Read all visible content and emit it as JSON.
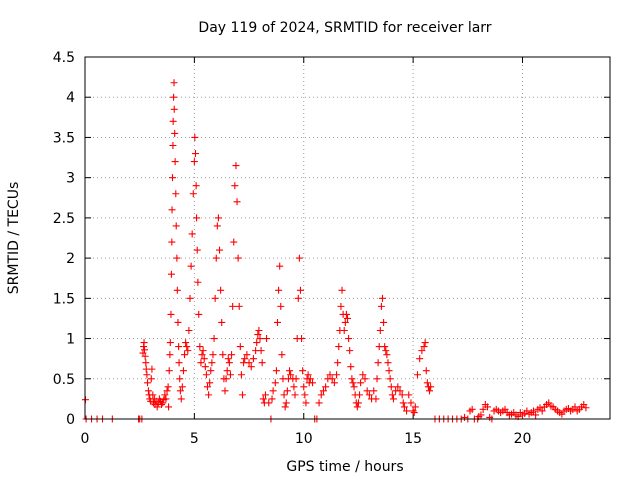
{
  "chart_data": {
    "type": "scatter",
    "title": "Day 119 of 2024, SRMTID for receiver larr",
    "xlabel": "GPS time / hours",
    "ylabel": "SRMTID / TECUs",
    "xlim": [
      0,
      24
    ],
    "ylim": [
      0,
      4.5
    ],
    "xticks": [
      0,
      5,
      10,
      15,
      20
    ],
    "xtick_labels": [
      "0",
      "5",
      "10",
      "15",
      "20"
    ],
    "yticks": [
      0,
      0.5,
      1,
      1.5,
      2,
      2.5,
      3,
      3.5,
      4,
      4.5
    ],
    "ytick_labels": [
      "0",
      "0.5",
      "1",
      "1.5",
      "2",
      "2.5",
      "3",
      "3.5",
      "4",
      "4.5"
    ],
    "grid": true,
    "marker": "plus",
    "color": "#ff0000",
    "series": [
      {
        "name": "SRMTID",
        "points": [
          [
            0.02,
            0.24
          ],
          [
            0.05,
            0.0
          ],
          [
            0.3,
            0.0
          ],
          [
            0.55,
            0.0
          ],
          [
            0.8,
            0.0
          ],
          [
            1.25,
            0.0
          ],
          [
            2.45,
            0.0
          ],
          [
            2.5,
            0.0
          ],
          [
            2.6,
            0.0
          ],
          [
            2.65,
            0.82
          ],
          [
            2.68,
            0.9
          ],
          [
            2.7,
            0.95
          ],
          [
            2.72,
            0.86
          ],
          [
            2.75,
            0.78
          ],
          [
            2.78,
            0.7
          ],
          [
            2.8,
            0.62
          ],
          [
            2.83,
            0.55
          ],
          [
            2.86,
            0.45
          ],
          [
            2.9,
            0.35
          ],
          [
            2.93,
            0.3
          ],
          [
            2.96,
            0.25
          ],
          [
            3.0,
            0.22
          ],
          [
            3.03,
            0.5
          ],
          [
            3.06,
            0.62
          ],
          [
            3.1,
            0.3
          ],
          [
            3.13,
            0.2
          ],
          [
            3.17,
            0.25
          ],
          [
            3.2,
            0.18
          ],
          [
            3.25,
            0.22
          ],
          [
            3.3,
            0.15
          ],
          [
            3.35,
            0.2
          ],
          [
            3.4,
            0.25
          ],
          [
            3.45,
            0.22
          ],
          [
            3.5,
            0.18
          ],
          [
            3.55,
            0.2
          ],
          [
            3.6,
            0.24
          ],
          [
            3.65,
            0.3
          ],
          [
            3.7,
            0.25
          ],
          [
            3.75,
            0.35
          ],
          [
            3.8,
            0.4
          ],
          [
            3.82,
            0.15
          ],
          [
            3.85,
            0.6
          ],
          [
            3.88,
            0.8
          ],
          [
            3.9,
            0.95
          ],
          [
            3.93,
            1.3
          ],
          [
            3.95,
            1.8
          ],
          [
            3.97,
            2.2
          ],
          [
            3.98,
            2.6
          ],
          [
            4.0,
            3.0
          ],
          [
            4.02,
            3.4
          ],
          [
            4.03,
            3.7
          ],
          [
            4.05,
            4.0
          ],
          [
            4.07,
            4.18
          ],
          [
            4.08,
            3.85
          ],
          [
            4.1,
            3.55
          ],
          [
            4.12,
            3.2
          ],
          [
            4.15,
            2.8
          ],
          [
            4.17,
            2.4
          ],
          [
            4.2,
            2.0
          ],
          [
            4.22,
            1.6
          ],
          [
            4.25,
            1.2
          ],
          [
            4.28,
            0.9
          ],
          [
            4.3,
            0.7
          ],
          [
            4.33,
            0.5
          ],
          [
            4.36,
            0.35
          ],
          [
            4.4,
            0.25
          ],
          [
            4.45,
            0.4
          ],
          [
            4.5,
            0.6
          ],
          [
            4.55,
            0.8
          ],
          [
            4.6,
            0.95
          ],
          [
            4.65,
            0.9
          ],
          [
            4.7,
            0.85
          ],
          [
            4.75,
            1.1
          ],
          [
            4.8,
            1.5
          ],
          [
            4.85,
            1.9
          ],
          [
            4.9,
            2.3
          ],
          [
            4.95,
            2.8
          ],
          [
            5.0,
            3.2
          ],
          [
            5.02,
            3.5
          ],
          [
            5.05,
            3.3
          ],
          [
            5.08,
            2.9
          ],
          [
            5.1,
            2.5
          ],
          [
            5.13,
            2.1
          ],
          [
            5.16,
            1.7
          ],
          [
            5.2,
            1.3
          ],
          [
            5.25,
            0.9
          ],
          [
            5.3,
            0.7
          ],
          [
            5.35,
            0.8
          ],
          [
            5.4,
            0.85
          ],
          [
            5.45,
            0.75
          ],
          [
            5.5,
            0.65
          ],
          [
            5.55,
            0.55
          ],
          [
            5.6,
            0.4
          ],
          [
            5.65,
            0.3
          ],
          [
            5.7,
            0.45
          ],
          [
            5.75,
            0.6
          ],
          [
            5.8,
            0.7
          ],
          [
            5.85,
            0.8
          ],
          [
            5.9,
            1.0
          ],
          [
            5.95,
            1.5
          ],
          [
            6.0,
            2.0
          ],
          [
            6.05,
            2.4
          ],
          [
            6.1,
            2.5
          ],
          [
            6.15,
            2.1
          ],
          [
            6.2,
            1.6
          ],
          [
            6.25,
            1.2
          ],
          [
            6.3,
            0.8
          ],
          [
            6.35,
            0.5
          ],
          [
            6.4,
            0.35
          ],
          [
            6.45,
            0.5
          ],
          [
            6.5,
            0.6
          ],
          [
            6.55,
            0.75
          ],
          [
            6.6,
            0.7
          ],
          [
            6.65,
            0.55
          ],
          [
            6.7,
            0.8
          ],
          [
            6.75,
            1.4
          ],
          [
            6.8,
            2.2
          ],
          [
            6.85,
            2.9
          ],
          [
            6.9,
            3.15
          ],
          [
            6.95,
            2.7
          ],
          [
            7.0,
            2.0
          ],
          [
            7.05,
            1.4
          ],
          [
            7.1,
            0.9
          ],
          [
            7.15,
            0.55
          ],
          [
            7.2,
            0.3
          ],
          [
            7.25,
            0.7
          ],
          [
            7.3,
            0.75
          ],
          [
            7.4,
            0.8
          ],
          [
            7.5,
            0.7
          ],
          [
            7.6,
            0.65
          ],
          [
            7.7,
            0.75
          ],
          [
            7.8,
            0.85
          ],
          [
            7.85,
            0.95
          ],
          [
            7.9,
            1.05
          ],
          [
            7.95,
            1.1
          ],
          [
            8.0,
            1.0
          ],
          [
            8.05,
            0.85
          ],
          [
            8.1,
            0.7
          ],
          [
            8.15,
            0.25
          ],
          [
            8.2,
            0.2
          ],
          [
            8.25,
            0.3
          ],
          [
            8.3,
            1.0
          ],
          [
            8.4,
            0.2
          ],
          [
            8.5,
            0.0
          ],
          [
            8.55,
            0.25
          ],
          [
            8.6,
            0.35
          ],
          [
            8.7,
            0.45
          ],
          [
            8.75,
            0.6
          ],
          [
            8.8,
            1.2
          ],
          [
            8.85,
            1.6
          ],
          [
            8.9,
            1.9
          ],
          [
            8.95,
            1.4
          ],
          [
            9.0,
            0.8
          ],
          [
            9.05,
            0.5
          ],
          [
            9.1,
            0.3
          ],
          [
            9.15,
            0.15
          ],
          [
            9.2,
            0.2
          ],
          [
            9.25,
            0.35
          ],
          [
            9.3,
            0.5
          ],
          [
            9.35,
            0.6
          ],
          [
            9.4,
            0.55
          ],
          [
            9.5,
            0.5
          ],
          [
            9.55,
            0.4
          ],
          [
            9.6,
            0.3
          ],
          [
            9.65,
            0.5
          ],
          [
            9.7,
            1.0
          ],
          [
            9.75,
            1.5
          ],
          [
            9.8,
            2.0
          ],
          [
            9.85,
            1.6
          ],
          [
            9.9,
            1.0
          ],
          [
            9.95,
            0.6
          ],
          [
            10.0,
            0.4
          ],
          [
            10.05,
            0.3
          ],
          [
            10.1,
            0.2
          ],
          [
            10.15,
            0.5
          ],
          [
            10.2,
            0.55
          ],
          [
            10.25,
            0.45
          ],
          [
            10.3,
            0.5
          ],
          [
            10.4,
            0.45
          ],
          [
            10.5,
            0.0
          ],
          [
            10.6,
            0.0
          ],
          [
            10.7,
            0.2
          ],
          [
            10.8,
            0.3
          ],
          [
            10.9,
            0.35
          ],
          [
            11.0,
            0.4
          ],
          [
            11.1,
            0.5
          ],
          [
            11.2,
            0.55
          ],
          [
            11.3,
            0.5
          ],
          [
            11.4,
            0.45
          ],
          [
            11.5,
            0.55
          ],
          [
            11.55,
            0.7
          ],
          [
            11.6,
            0.9
          ],
          [
            11.65,
            1.1
          ],
          [
            11.7,
            1.4
          ],
          [
            11.75,
            1.6
          ],
          [
            11.8,
            1.3
          ],
          [
            11.85,
            1.1
          ],
          [
            11.9,
            1.2
          ],
          [
            11.95,
            1.3
          ],
          [
            12.0,
            1.25
          ],
          [
            12.05,
            1.0
          ],
          [
            12.1,
            0.85
          ],
          [
            12.15,
            0.65
          ],
          [
            12.2,
            0.5
          ],
          [
            12.25,
            0.45
          ],
          [
            12.3,
            0.4
          ],
          [
            12.35,
            0.3
          ],
          [
            12.4,
            0.2
          ],
          [
            12.45,
            0.15
          ],
          [
            12.5,
            0.2
          ],
          [
            12.55,
            0.3
          ],
          [
            12.6,
            0.45
          ],
          [
            12.7,
            0.55
          ],
          [
            12.8,
            0.5
          ],
          [
            12.9,
            0.35
          ],
          [
            13.0,
            0.3
          ],
          [
            13.1,
            0.25
          ],
          [
            13.2,
            0.35
          ],
          [
            13.3,
            0.25
          ],
          [
            13.35,
            0.5
          ],
          [
            13.4,
            0.7
          ],
          [
            13.45,
            0.9
          ],
          [
            13.5,
            1.1
          ],
          [
            13.55,
            1.4
          ],
          [
            13.6,
            1.5
          ],
          [
            13.65,
            1.2
          ],
          [
            13.7,
            0.9
          ],
          [
            13.75,
            0.85
          ],
          [
            13.8,
            0.8
          ],
          [
            13.85,
            0.7
          ],
          [
            13.9,
            0.6
          ],
          [
            13.95,
            0.5
          ],
          [
            14.0,
            0.4
          ],
          [
            14.05,
            0.3
          ],
          [
            14.1,
            0.25
          ],
          [
            14.2,
            0.35
          ],
          [
            14.3,
            0.4
          ],
          [
            14.4,
            0.35
          ],
          [
            14.5,
            0.3
          ],
          [
            14.55,
            0.2
          ],
          [
            14.6,
            0.15
          ],
          [
            14.7,
            0.1
          ],
          [
            14.8,
            0.3
          ],
          [
            14.9,
            0.2
          ],
          [
            15.0,
            0.1
          ],
          [
            15.05,
            0.08
          ],
          [
            15.1,
            0.15
          ],
          [
            15.2,
            0.55
          ],
          [
            15.3,
            0.75
          ],
          [
            15.4,
            0.85
          ],
          [
            15.5,
            0.9
          ],
          [
            15.55,
            0.95
          ],
          [
            15.6,
            0.6
          ],
          [
            15.65,
            0.45
          ],
          [
            15.7,
            0.4
          ],
          [
            15.75,
            0.35
          ],
          [
            15.8,
            0.4
          ],
          [
            16.0,
            0.0
          ],
          [
            16.2,
            0.0
          ],
          [
            16.4,
            0.0
          ],
          [
            16.6,
            0.0
          ],
          [
            16.8,
            0.0
          ],
          [
            17.0,
            0.0
          ],
          [
            17.2,
            0.0
          ],
          [
            17.35,
            0.02
          ],
          [
            17.5,
            0.0
          ],
          [
            17.6,
            0.1
          ],
          [
            17.7,
            0.12
          ],
          [
            17.8,
            0.0
          ],
          [
            17.95,
            0.0
          ],
          [
            18.0,
            0.03
          ],
          [
            18.1,
            0.05
          ],
          [
            18.2,
            0.12
          ],
          [
            18.3,
            0.18
          ],
          [
            18.4,
            0.15
          ],
          [
            18.5,
            0.02
          ],
          [
            18.6,
            0.0
          ],
          [
            18.7,
            0.1
          ],
          [
            18.8,
            0.12
          ],
          [
            18.9,
            0.1
          ],
          [
            19.0,
            0.08
          ],
          [
            19.1,
            0.1
          ],
          [
            19.2,
            0.12
          ],
          [
            19.3,
            0.08
          ],
          [
            19.4,
            0.05
          ],
          [
            19.5,
            0.06
          ],
          [
            19.6,
            0.08
          ],
          [
            19.7,
            0.05
          ],
          [
            19.8,
            0.03
          ],
          [
            19.9,
            0.08
          ],
          [
            20.0,
            0.05
          ],
          [
            20.1,
            0.07
          ],
          [
            20.2,
            0.1
          ],
          [
            20.3,
            0.06
          ],
          [
            20.4,
            0.08
          ],
          [
            20.5,
            0.1
          ],
          [
            20.6,
            0.05
          ],
          [
            20.7,
            0.12
          ],
          [
            20.8,
            0.14
          ],
          [
            20.9,
            0.1
          ],
          [
            21.0,
            0.15
          ],
          [
            21.1,
            0.18
          ],
          [
            21.2,
            0.2
          ],
          [
            21.3,
            0.16
          ],
          [
            21.4,
            0.15
          ],
          [
            21.5,
            0.12
          ],
          [
            21.6,
            0.1
          ],
          [
            21.7,
            0.08
          ],
          [
            21.8,
            0.06
          ],
          [
            21.9,
            0.1
          ],
          [
            22.0,
            0.12
          ],
          [
            22.1,
            0.13
          ],
          [
            22.2,
            0.1
          ],
          [
            22.3,
            0.12
          ],
          [
            22.4,
            0.15
          ],
          [
            22.5,
            0.1
          ],
          [
            22.6,
            0.12
          ],
          [
            22.7,
            0.15
          ],
          [
            22.8,
            0.18
          ],
          [
            22.9,
            0.14
          ]
        ]
      }
    ]
  }
}
